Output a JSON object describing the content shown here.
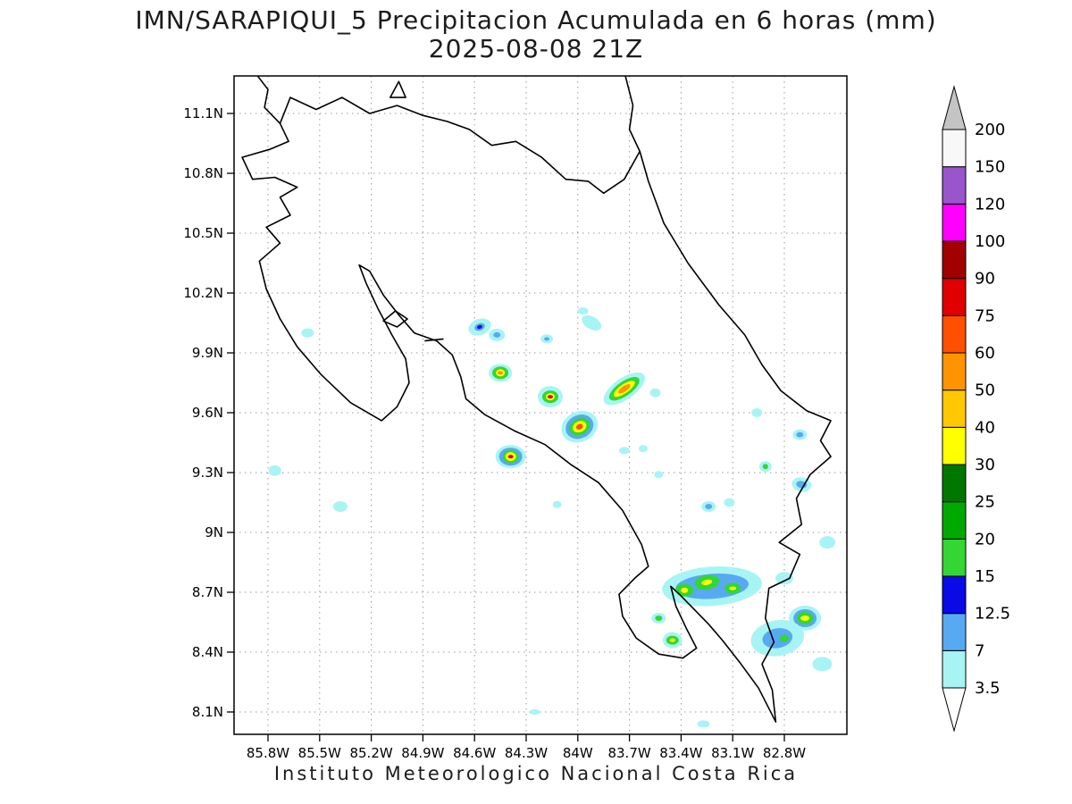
{
  "title": {
    "line1": "IMN/SARAPIQUI_5 Precipitacion Acumulada en 6 horas (mm)",
    "line2": "2025-08-08 21Z"
  },
  "caption": "Instituto Meteorologico Nacional Costa Rica",
  "axes": {
    "lat": [
      {
        "label": "11.1N",
        "v": 11.1
      },
      {
        "label": "10.8N",
        "v": 10.8
      },
      {
        "label": "10.5N",
        "v": 10.5
      },
      {
        "label": "10.2N",
        "v": 10.2
      },
      {
        "label": "9.9N",
        "v": 9.9
      },
      {
        "label": "9.6N",
        "v": 9.6
      },
      {
        "label": "9.3N",
        "v": 9.3
      },
      {
        "label": "9N",
        "v": 9.0
      },
      {
        "label": "8.7N",
        "v": 8.7
      },
      {
        "label": "8.4N",
        "v": 8.4
      },
      {
        "label": "8.1N",
        "v": 8.1
      }
    ],
    "lon": [
      {
        "label": "85.8W",
        "v": -85.8
      },
      {
        "label": "85.5W",
        "v": -85.5
      },
      {
        "label": "85.2W",
        "v": -85.2
      },
      {
        "label": "84.9W",
        "v": -84.9
      },
      {
        "label": "84.6W",
        "v": -84.6
      },
      {
        "label": "84.3W",
        "v": -84.3
      },
      {
        "label": "84W",
        "v": -84.0
      },
      {
        "label": "83.7W",
        "v": -83.7
      },
      {
        "label": "83.4W",
        "v": -83.4
      },
      {
        "label": "83.1W",
        "v": -83.1
      },
      {
        "label": "82.8W",
        "v": -82.8
      }
    ]
  },
  "colorbar": {
    "levels": [
      "3.5",
      "7",
      "12.5",
      "15",
      "20",
      "25",
      "30",
      "40",
      "50",
      "60",
      "75",
      "90",
      "100",
      "120",
      "150",
      "200"
    ],
    "segment_colors": [
      "#a8f4f4",
      "#57a9f2",
      "#0a0ae6",
      "#33d633",
      "#00a900",
      "#007700",
      "#ffff00",
      "#ffc800",
      "#ff9400",
      "#ff4f00",
      "#e00000",
      "#a00000",
      "#ff00ff",
      "#9955cc",
      "#f8f8f8"
    ],
    "above_color": "#c4c4c4",
    "below_color": "#ffffff"
  },
  "map": {
    "grid_color": "#999999",
    "coast_color": "#000000",
    "coastlines": [
      {
        "name": "costa-rica-mainland",
        "closed": true,
        "pts": [
          [
            -85.73,
            11.05
          ],
          [
            -85.67,
            11.18
          ],
          [
            -85.52,
            11.12
          ],
          [
            -85.37,
            11.18
          ],
          [
            -85.21,
            11.1
          ],
          [
            -85.05,
            11.14
          ],
          [
            -84.9,
            11.09
          ],
          [
            -84.76,
            11.06
          ],
          [
            -84.63,
            11.02
          ],
          [
            -84.5,
            10.94
          ],
          [
            -84.36,
            10.96
          ],
          [
            -84.21,
            10.88
          ],
          [
            -84.07,
            10.77
          ],
          [
            -83.94,
            10.76
          ],
          [
            -83.85,
            10.7
          ],
          [
            -83.73,
            10.77
          ],
          [
            -83.64,
            10.91
          ],
          [
            -83.59,
            10.76
          ],
          [
            -83.5,
            10.55
          ],
          [
            -83.36,
            10.35
          ],
          [
            -83.18,
            10.14
          ],
          [
            -83.03,
            9.99
          ],
          [
            -82.93,
            9.84
          ],
          [
            -82.82,
            9.71
          ],
          [
            -82.67,
            9.61
          ],
          [
            -82.53,
            9.56
          ],
          [
            -82.59,
            9.46
          ],
          [
            -82.53,
            9.38
          ],
          [
            -82.65,
            9.29
          ],
          [
            -82.73,
            9.17
          ],
          [
            -82.7,
            9.04
          ],
          [
            -82.83,
            8.95
          ],
          [
            -82.71,
            8.89
          ],
          [
            -82.77,
            8.77
          ],
          [
            -82.89,
            8.72
          ],
          [
            -82.91,
            8.57
          ],
          [
            -82.86,
            8.45
          ],
          [
            -82.93,
            8.34
          ],
          [
            -82.87,
            8.21
          ],
          [
            -82.85,
            8.05
          ],
          [
            -82.95,
            8.22
          ],
          [
            -83.06,
            8.35
          ],
          [
            -83.16,
            8.46
          ],
          [
            -83.24,
            8.54
          ],
          [
            -83.33,
            8.62
          ],
          [
            -83.41,
            8.69
          ],
          [
            -83.46,
            8.73
          ],
          [
            -83.43,
            8.63
          ],
          [
            -83.37,
            8.52
          ],
          [
            -83.31,
            8.42
          ],
          [
            -83.39,
            8.37
          ],
          [
            -83.53,
            8.39
          ],
          [
            -83.66,
            8.47
          ],
          [
            -83.74,
            8.58
          ],
          [
            -83.76,
            8.69
          ],
          [
            -83.67,
            8.77
          ],
          [
            -83.59,
            8.83
          ],
          [
            -83.63,
            8.94
          ],
          [
            -83.74,
            9.11
          ],
          [
            -83.88,
            9.25
          ],
          [
            -84.04,
            9.34
          ],
          [
            -84.19,
            9.44
          ],
          [
            -84.37,
            9.51
          ],
          [
            -84.54,
            9.59
          ],
          [
            -84.65,
            9.67
          ],
          [
            -84.68,
            9.78
          ],
          [
            -84.73,
            9.89
          ],
          [
            -84.82,
            9.96
          ],
          [
            -84.95,
            10.0
          ],
          [
            -85.04,
            10.09
          ],
          [
            -85.13,
            10.19
          ],
          [
            -85.21,
            10.31
          ],
          [
            -85.27,
            10.34
          ],
          [
            -85.23,
            10.25
          ],
          [
            -85.16,
            10.12
          ],
          [
            -85.08,
            9.99
          ],
          [
            -85.0,
            9.87
          ],
          [
            -84.98,
            9.75
          ],
          [
            -85.05,
            9.63
          ],
          [
            -85.14,
            9.56
          ],
          [
            -85.32,
            9.65
          ],
          [
            -85.49,
            9.79
          ],
          [
            -85.63,
            9.93
          ],
          [
            -85.73,
            10.07
          ],
          [
            -85.81,
            10.22
          ],
          [
            -85.85,
            10.36
          ],
          [
            -85.73,
            10.45
          ],
          [
            -85.81,
            10.53
          ],
          [
            -85.67,
            10.59
          ],
          [
            -85.73,
            10.68
          ],
          [
            -85.63,
            10.73
          ],
          [
            -85.76,
            10.78
          ],
          [
            -85.89,
            10.77
          ],
          [
            -85.95,
            10.88
          ],
          [
            -85.79,
            10.92
          ],
          [
            -85.68,
            10.96
          ]
        ]
      },
      {
        "name": "nicaragua-pacific-coast",
        "closed": false,
        "pts": [
          [
            -85.73,
            11.05
          ],
          [
            -85.82,
            11.13
          ],
          [
            -85.8,
            11.22
          ],
          [
            -85.88,
            11.31
          ]
        ]
      },
      {
        "name": "nicaragua-caribbean-coast",
        "closed": false,
        "pts": [
          [
            -83.64,
            10.91
          ],
          [
            -83.7,
            11.02
          ],
          [
            -83.68,
            11.14
          ],
          [
            -83.73,
            11.31
          ]
        ]
      },
      {
        "name": "border-island",
        "closed": true,
        "pts": [
          [
            -85.09,
            11.18
          ],
          [
            -85.0,
            11.18
          ],
          [
            -85.04,
            11.26
          ]
        ]
      },
      {
        "name": "isla-chira",
        "closed": true,
        "pts": [
          [
            -85.13,
            10.06
          ],
          [
            -85.05,
            10.03
          ],
          [
            -84.99,
            10.07
          ],
          [
            -85.06,
            10.11
          ]
        ]
      },
      {
        "name": "puntarenas-spit",
        "closed": false,
        "pts": [
          [
            -84.78,
            9.97
          ],
          [
            -84.89,
            9.96
          ]
        ]
      }
    ]
  },
  "precip_cells": [
    {
      "lon": -85.57,
      "lat": 10.0,
      "rot": 0,
      "rings": [
        [
          0,
          7,
          5
        ]
      ]
    },
    {
      "lon": -84.57,
      "lat": 10.03,
      "rot": -20,
      "rings": [
        [
          0,
          13,
          9
        ],
        [
          1,
          6,
          4
        ],
        [
          2,
          3,
          2
        ]
      ]
    },
    {
      "lon": -84.47,
      "lat": 9.99,
      "rot": 0,
      "rings": [
        [
          0,
          9,
          7
        ],
        [
          1,
          4,
          3
        ]
      ]
    },
    {
      "lon": -84.18,
      "lat": 9.97,
      "rot": 0,
      "rings": [
        [
          0,
          7,
          5
        ],
        [
          1,
          3,
          2
        ]
      ]
    },
    {
      "lon": -83.97,
      "lat": 10.11,
      "rot": 0,
      "rings": [
        [
          0,
          6,
          4
        ]
      ]
    },
    {
      "lon": -83.92,
      "lat": 10.05,
      "rot": 30,
      "rings": [
        [
          0,
          12,
          7
        ]
      ]
    },
    {
      "lon": -84.45,
      "lat": 9.8,
      "rot": 0,
      "rings": [
        [
          0,
          13,
          10
        ],
        [
          3,
          9,
          7
        ],
        [
          6,
          5,
          4
        ],
        [
          8,
          3,
          2
        ]
      ]
    },
    {
      "lon": -84.16,
      "lat": 9.68,
      "rot": 0,
      "rings": [
        [
          0,
          14,
          12
        ],
        [
          3,
          9,
          7
        ],
        [
          6,
          5,
          4
        ],
        [
          10,
          3,
          2
        ]
      ]
    },
    {
      "lon": -83.73,
      "lat": 9.72,
      "rot": -35,
      "rings": [
        [
          0,
          27,
          12
        ],
        [
          3,
          20,
          8
        ],
        [
          6,
          14,
          5
        ],
        [
          8,
          8,
          3
        ]
      ]
    },
    {
      "lon": -83.55,
      "lat": 9.7,
      "rot": 0,
      "rings": [
        [
          0,
          6,
          5
        ]
      ]
    },
    {
      "lon": -83.99,
      "lat": 9.53,
      "rot": -25,
      "rings": [
        [
          0,
          21,
          17
        ],
        [
          1,
          16,
          13
        ],
        [
          3,
          12,
          9
        ],
        [
          6,
          8,
          6
        ],
        [
          9,
          4,
          3
        ]
      ]
    },
    {
      "lon": -84.39,
      "lat": 9.38,
      "rot": 0,
      "rings": [
        [
          0,
          17,
          13
        ],
        [
          1,
          13,
          10
        ],
        [
          3,
          9,
          7
        ],
        [
          6,
          6,
          5
        ],
        [
          10,
          3,
          2
        ]
      ]
    },
    {
      "lon": -85.76,
      "lat": 9.31,
      "rot": 0,
      "rings": [
        [
          0,
          7,
          6
        ]
      ]
    },
    {
      "lon": -85.38,
      "lat": 9.13,
      "rot": 0,
      "rings": [
        [
          0,
          8,
          6
        ]
      ]
    },
    {
      "lon": -84.12,
      "lat": 9.14,
      "rot": 0,
      "rings": [
        [
          0,
          5,
          4
        ]
      ]
    },
    {
      "lon": -83.73,
      "lat": 9.41,
      "rot": 0,
      "rings": [
        [
          0,
          6,
          4
        ]
      ]
    },
    {
      "lon": -83.62,
      "lat": 9.42,
      "rot": 0,
      "rings": [
        [
          0,
          5,
          4
        ]
      ]
    },
    {
      "lon": -83.53,
      "lat": 9.29,
      "rot": 0,
      "rings": [
        [
          0,
          5,
          4
        ]
      ]
    },
    {
      "lon": -82.96,
      "lat": 9.6,
      "rot": 0,
      "rings": [
        [
          0,
          6,
          5
        ]
      ]
    },
    {
      "lon": -82.71,
      "lat": 9.49,
      "rot": 0,
      "rings": [
        [
          0,
          8,
          6
        ],
        [
          1,
          4,
          3
        ]
      ]
    },
    {
      "lon": -82.91,
      "lat": 9.33,
      "rot": 0,
      "rings": [
        [
          0,
          7,
          6
        ],
        [
          3,
          3,
          3
        ]
      ]
    },
    {
      "lon": -82.7,
      "lat": 9.24,
      "rot": 10,
      "rings": [
        [
          0,
          11,
          8
        ],
        [
          1,
          6,
          4
        ]
      ]
    },
    {
      "lon": -83.24,
      "lat": 9.13,
      "rot": 0,
      "rings": [
        [
          0,
          8,
          6
        ],
        [
          1,
          4,
          3
        ]
      ]
    },
    {
      "lon": -83.12,
      "lat": 9.15,
      "rot": 0,
      "rings": [
        [
          0,
          6,
          5
        ]
      ]
    },
    {
      "lon": -82.55,
      "lat": 8.95,
      "rot": 0,
      "rings": [
        [
          0,
          9,
          7
        ]
      ]
    },
    {
      "lon": -83.22,
      "lat": 8.73,
      "rot": -4,
      "rings": [
        [
          0,
          56,
          22
        ],
        [
          1,
          41,
          14
        ]
      ]
    },
    {
      "lon": -83.38,
      "lat": 8.71,
      "rot": 0,
      "rings": [
        [
          3,
          10,
          7
        ],
        [
          6,
          4,
          3
        ]
      ]
    },
    {
      "lon": -83.25,
      "lat": 8.75,
      "rot": -10,
      "rings": [
        [
          3,
          14,
          8
        ],
        [
          6,
          6,
          3
        ]
      ]
    },
    {
      "lon": -83.1,
      "lat": 8.72,
      "rot": 0,
      "rings": [
        [
          3,
          9,
          6
        ],
        [
          6,
          4,
          2
        ]
      ]
    },
    {
      "lon": -82.8,
      "lat": 8.77,
      "rot": 0,
      "rings": [
        [
          0,
          10,
          7
        ]
      ]
    },
    {
      "lon": -82.68,
      "lat": 8.57,
      "rot": 0,
      "rings": [
        [
          0,
          18,
          14
        ],
        [
          1,
          13,
          10
        ],
        [
          3,
          9,
          7
        ],
        [
          6,
          5,
          3
        ]
      ]
    },
    {
      "lon": -82.84,
      "lat": 8.47,
      "rot": -10,
      "rings": [
        [
          0,
          30,
          20
        ],
        [
          1,
          17,
          11
        ]
      ]
    },
    {
      "lon": -82.8,
      "lat": 8.47,
      "rot": 0,
      "rings": [
        [
          3,
          5,
          4
        ]
      ]
    },
    {
      "lon": -82.58,
      "lat": 8.34,
      "rot": 0,
      "rings": [
        [
          0,
          11,
          8
        ]
      ]
    },
    {
      "lon": -83.53,
      "lat": 8.57,
      "rot": 0,
      "rings": [
        [
          0,
          8,
          6
        ],
        [
          3,
          4,
          3
        ]
      ]
    },
    {
      "lon": -83.45,
      "lat": 8.46,
      "rot": 0,
      "rings": [
        [
          0,
          11,
          9
        ],
        [
          3,
          7,
          5
        ],
        [
          6,
          3,
          2
        ]
      ]
    },
    {
      "lon": -84.25,
      "lat": 8.1,
      "rot": 0,
      "rings": [
        [
          0,
          6,
          3
        ]
      ]
    },
    {
      "lon": -83.27,
      "lat": 8.04,
      "rot": 0,
      "rings": [
        [
          0,
          7,
          4
        ]
      ]
    }
  ]
}
